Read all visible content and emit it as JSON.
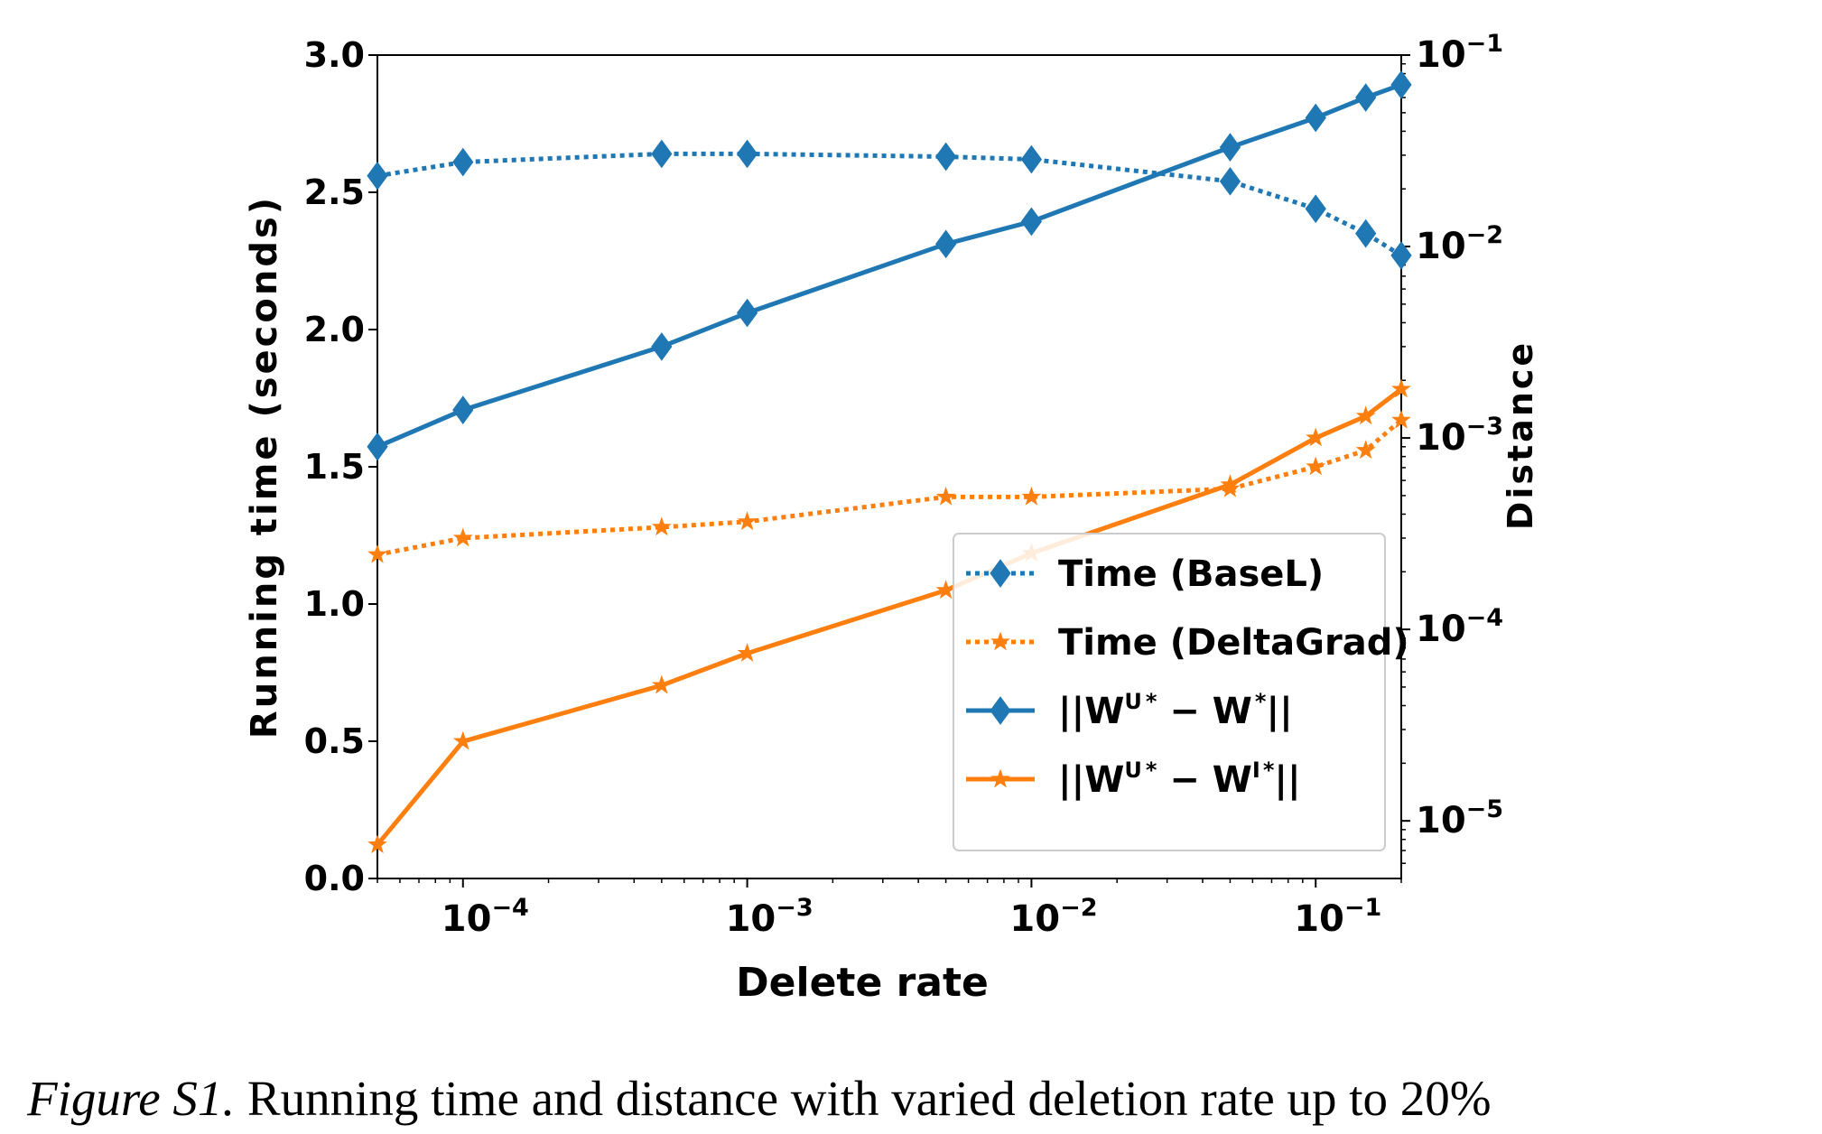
{
  "chart_data": {
    "type": "line",
    "xlabel": "Delete rate",
    "ylabel": "Running time (seconds)",
    "y2label": "Distance",
    "x_scale": "log",
    "y_scale": "linear",
    "y2_scale": "log",
    "xlim": [
      5e-05,
      0.2
    ],
    "ylim": [
      0,
      3.0
    ],
    "y2lim": [
      5e-06,
      0.1
    ],
    "grid": false,
    "legend_position": "lower-right",
    "x_ticks": [
      {
        "value": 0.0001,
        "base": "10",
        "exp": "−4"
      },
      {
        "value": 0.001,
        "base": "10",
        "exp": "−3"
      },
      {
        "value": 0.01,
        "base": "10",
        "exp": "−2"
      },
      {
        "value": 0.1,
        "base": "10",
        "exp": "−1"
      }
    ],
    "y_ticks": [
      "0.0",
      "0.5",
      "1.0",
      "1.5",
      "2.0",
      "2.5",
      "3.0"
    ],
    "y2_ticks": [
      {
        "value": 1e-05,
        "base": "10",
        "exp": "−5"
      },
      {
        "value": 0.0001,
        "base": "10",
        "exp": "−4"
      },
      {
        "value": 0.001,
        "base": "10",
        "exp": "−3"
      },
      {
        "value": 0.01,
        "base": "10",
        "exp": "−2"
      },
      {
        "value": 0.1,
        "base": "10",
        "exp": "−1"
      }
    ],
    "x": [
      5e-05,
      0.0001,
      0.0005,
      0.001,
      0.005,
      0.01,
      0.05,
      0.1,
      0.15,
      0.2
    ],
    "series": [
      {
        "name": "Time (BaseL)",
        "axis": "left",
        "color": "#1f77b4",
        "style": "dotted",
        "marker": "diamond",
        "values": [
          2.56,
          2.61,
          2.64,
          2.64,
          2.63,
          2.62,
          2.54,
          2.44,
          2.35,
          2.27
        ]
      },
      {
        "name": "Time (DeltaGrad)",
        "axis": "left",
        "color": "#ff7f0e",
        "style": "dotted",
        "marker": "star",
        "values": [
          1.18,
          1.24,
          1.28,
          1.3,
          1.39,
          1.39,
          1.42,
          1.5,
          1.56,
          1.67
        ]
      },
      {
        "name_parts": {
          "a": "||W",
          "b": "U",
          "c": "*",
          "d": " − W",
          "e": "",
          "f": "*",
          "g": "||"
        },
        "axis": "right",
        "color": "#1f77b4",
        "style": "solid",
        "marker": "diamond",
        "values": [
          0.0009,
          0.0014,
          0.003,
          0.0045,
          0.0103,
          0.0135,
          0.033,
          0.047,
          0.06,
          0.07
        ]
      },
      {
        "name_parts": {
          "a": "||W",
          "b": "U",
          "c": "*",
          "d": " − W",
          "e": "I",
          "f": "*",
          "g": "||"
        },
        "axis": "right",
        "color": "#ff7f0e",
        "style": "solid",
        "marker": "star",
        "values": [
          7.5e-06,
          2.6e-05,
          5.1e-05,
          7.5e-05,
          0.00016,
          0.00025,
          0.00057,
          0.001,
          0.0013,
          0.0018
        ]
      }
    ]
  },
  "caption": {
    "label": "Figure S1.",
    "text": " Running time and distance with varied deletion rate up to 20%"
  }
}
